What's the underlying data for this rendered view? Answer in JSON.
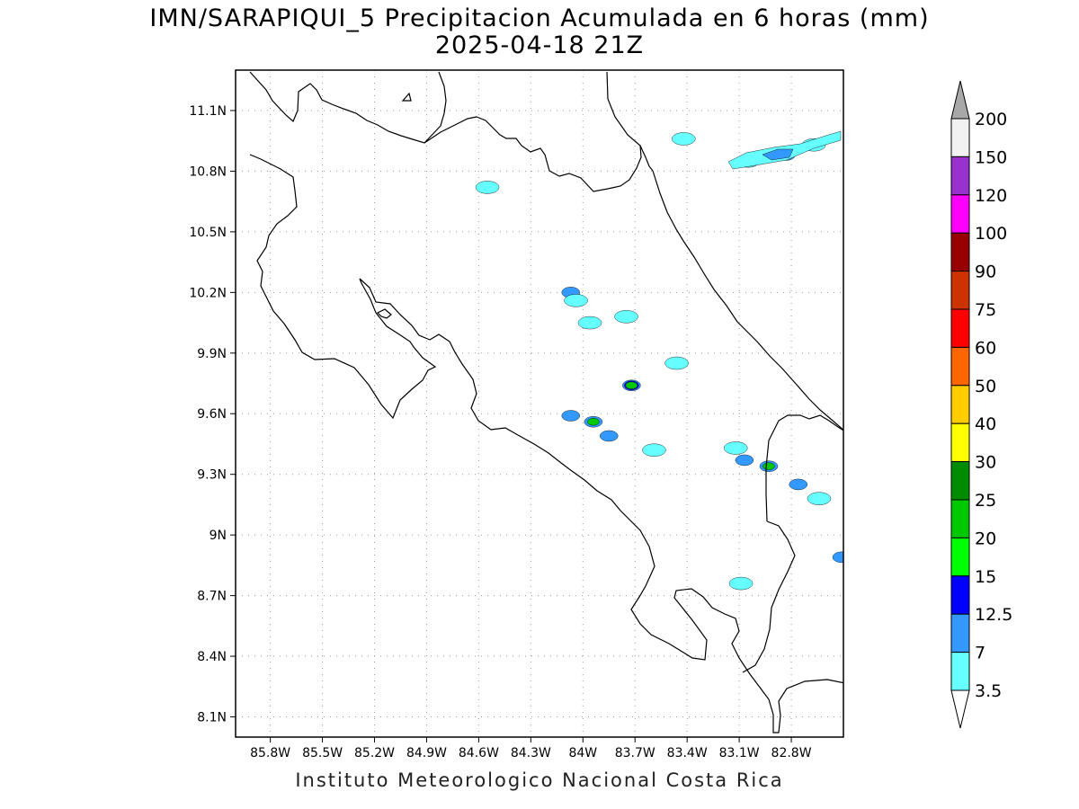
{
  "title": {
    "line1": "IMN/SARAPIQUI_5 Precipitacion Acumulada en 6 horas (mm)",
    "line2": "2025-04-18 21Z"
  },
  "footer": "Instituto Meteorologico Nacional Costa Rica",
  "map": {
    "lon_ticks": [
      {
        "value": -85.8,
        "label": "85.8W"
      },
      {
        "value": -85.5,
        "label": "85.5W"
      },
      {
        "value": -85.2,
        "label": "85.2W"
      },
      {
        "value": -84.9,
        "label": "84.9W"
      },
      {
        "value": -84.6,
        "label": "84.6W"
      },
      {
        "value": -84.3,
        "label": "84.3W"
      },
      {
        "value": -84.0,
        "label": "84W"
      },
      {
        "value": -83.7,
        "label": "83.7W"
      },
      {
        "value": -83.4,
        "label": "83.4W"
      },
      {
        "value": -83.1,
        "label": "83.1W"
      },
      {
        "value": -82.8,
        "label": "82.8W"
      }
    ],
    "lat_ticks": [
      {
        "value": 11.1,
        "label": "11.1N"
      },
      {
        "value": 10.8,
        "label": "10.8N"
      },
      {
        "value": 10.5,
        "label": "10.5N"
      },
      {
        "value": 10.2,
        "label": "10.2N"
      },
      {
        "value": 9.9,
        "label": "9.9N"
      },
      {
        "value": 9.6,
        "label": "9.6N"
      },
      {
        "value": 9.3,
        "label": "9.3N"
      },
      {
        "value": 9.0,
        "label": "9N"
      },
      {
        "value": 8.7,
        "label": "8.7N"
      },
      {
        "value": 8.4,
        "label": "8.4N"
      },
      {
        "value": 8.1,
        "label": "8.1N"
      }
    ],
    "lon_range": [
      -86.0,
      -82.5
    ],
    "lat_range": [
      8.0,
      11.3
    ],
    "grid": true
  },
  "legend": {
    "levels": [
      {
        "label": "200",
        "color": "#a8a8a8"
      },
      {
        "label": "150",
        "color": "#f2f2f2"
      },
      {
        "label": "120",
        "color": "#9932cc"
      },
      {
        "label": "100",
        "color": "#ff00ff"
      },
      {
        "label": "90",
        "color": "#990000"
      },
      {
        "label": "75",
        "color": "#cc3300"
      },
      {
        "label": "60",
        "color": "#ff0000"
      },
      {
        "label": "50",
        "color": "#ff6600"
      },
      {
        "label": "40",
        "color": "#ffcc00"
      },
      {
        "label": "30",
        "color": "#ffff00"
      },
      {
        "label": "25",
        "color": "#008c00"
      },
      {
        "label": "20",
        "color": "#00c800"
      },
      {
        "label": "15",
        "color": "#00ff00"
      },
      {
        "label": "12.5",
        "color": "#0000ff"
      },
      {
        "label": "7",
        "color": "#3399ff"
      },
      {
        "label": "3.5",
        "color": "#66ffff"
      }
    ],
    "bottom_color": "#ffffff"
  },
  "precip_cells": [
    {
      "lon": -83.05,
      "lat": 10.85,
      "level": "3.5"
    },
    {
      "lon": -82.83,
      "lat": 10.88,
      "level": "7"
    },
    {
      "lon": -82.94,
      "lat": 10.88,
      "level": "7"
    },
    {
      "lon": -82.67,
      "lat": 10.93,
      "level": "3.5"
    },
    {
      "lon": -83.42,
      "lat": 10.96,
      "level": "3.5"
    },
    {
      "lon": -84.55,
      "lat": 10.72,
      "level": "3.5"
    },
    {
      "lon": -84.07,
      "lat": 10.2,
      "level": "7"
    },
    {
      "lon": -84.04,
      "lat": 10.16,
      "level": "3.5"
    },
    {
      "lon": -83.96,
      "lat": 10.05,
      "level": "3.5"
    },
    {
      "lon": -83.75,
      "lat": 10.08,
      "level": "3.5"
    },
    {
      "lon": -83.72,
      "lat": 9.74,
      "level": "7"
    },
    {
      "lon": -83.72,
      "lat": 9.74,
      "level": "12.5"
    },
    {
      "lon": -83.72,
      "lat": 9.74,
      "level": "20"
    },
    {
      "lon": -83.94,
      "lat": 9.56,
      "level": "7"
    },
    {
      "lon": -83.94,
      "lat": 9.56,
      "level": "20"
    },
    {
      "lon": -84.07,
      "lat": 9.59,
      "level": "7"
    },
    {
      "lon": -83.85,
      "lat": 9.49,
      "level": "7"
    },
    {
      "lon": -83.59,
      "lat": 9.42,
      "level": "3.5"
    },
    {
      "lon": -83.46,
      "lat": 9.85,
      "level": "3.5"
    },
    {
      "lon": -83.07,
      "lat": 9.37,
      "level": "7"
    },
    {
      "lon": -82.93,
      "lat": 9.34,
      "level": "7"
    },
    {
      "lon": -82.93,
      "lat": 9.34,
      "level": "20"
    },
    {
      "lon": -83.12,
      "lat": 9.43,
      "level": "3.5"
    },
    {
      "lon": -82.76,
      "lat": 9.25,
      "level": "7"
    },
    {
      "lon": -82.64,
      "lat": 9.18,
      "level": "3.5"
    },
    {
      "lon": -82.51,
      "lat": 8.89,
      "level": "7"
    },
    {
      "lon": -83.09,
      "lat": 8.76,
      "level": "3.5"
    }
  ]
}
